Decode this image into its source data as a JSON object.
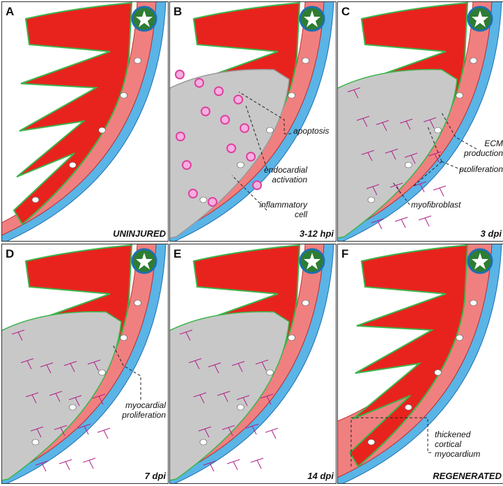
{
  "panels": [
    {
      "letter": "A",
      "stage": "UNINJURED",
      "annotations": []
    },
    {
      "letter": "B",
      "stage": "3-12 hpi",
      "annotations": [
        {
          "lines": [
            "apoptosis"
          ]
        },
        {
          "lines": [
            "endocardial",
            "activation"
          ]
        },
        {
          "lines": [
            "inflammatory",
            "cell"
          ]
        }
      ]
    },
    {
      "letter": "C",
      "stage": "3 dpi",
      "annotations": [
        {
          "lines": [
            "ECM",
            "production"
          ]
        },
        {
          "lines": [
            "proliferation"
          ]
        },
        {
          "lines": [
            "myofibroblast"
          ]
        }
      ]
    },
    {
      "letter": "D",
      "stage": "7 dpi",
      "annotations": [
        {
          "lines": [
            "myocardial",
            "proliferation"
          ]
        }
      ]
    },
    {
      "letter": "E",
      "stage": "14 dpi",
      "annotations": []
    },
    {
      "letter": "F",
      "stage": "REGENERATED",
      "annotations": [
        {
          "lines": [
            "thickened",
            "cortical",
            "myocardium"
          ]
        }
      ]
    }
  ]
}
